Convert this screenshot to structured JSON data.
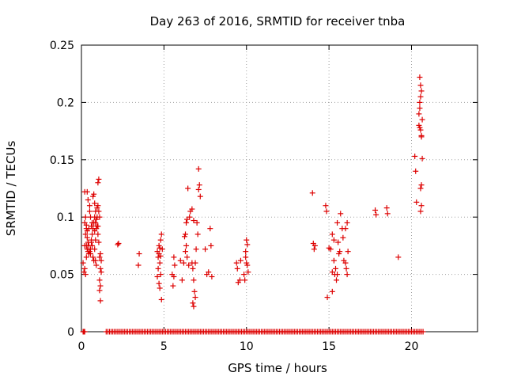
{
  "chart_data": {
    "type": "scatter",
    "title": "Day 263 of 2016, SRMTID for receiver tnba",
    "xlabel": "GPS time / hours",
    "ylabel": "SRMTID / TECUs",
    "xlim": [
      0,
      24
    ],
    "ylim": [
      0,
      0.25
    ],
    "xticks": [
      0,
      5,
      10,
      15,
      20
    ],
    "xtick_labels": [
      "0",
      "5",
      "10",
      "15",
      "20"
    ],
    "yticks": [
      0,
      0.05,
      0.1,
      0.15,
      0.2,
      0.25
    ],
    "ytick_labels": [
      "0",
      "0.05",
      "0.1",
      "0.15",
      "0.2",
      "0.25"
    ],
    "grid": true,
    "marker": "plus",
    "color": "#dd0000",
    "series": [
      {
        "name": "SRMTID",
        "points": [
          [
            0.1,
            0.0
          ],
          [
            0.15,
            0.0
          ],
          [
            0.2,
            0.0
          ],
          [
            0.1,
            0.06
          ],
          [
            0.15,
            0.052
          ],
          [
            0.2,
            0.055
          ],
          [
            0.25,
            0.05
          ],
          [
            0.3,
            0.065
          ],
          [
            0.2,
            0.075
          ],
          [
            0.25,
            0.085
          ],
          [
            0.3,
            0.093
          ],
          [
            0.35,
            0.088
          ],
          [
            0.2,
            0.095
          ],
          [
            0.25,
            0.1
          ],
          [
            0.3,
            0.09
          ],
          [
            0.35,
            0.082
          ],
          [
            0.4,
            0.078
          ],
          [
            0.45,
            0.09
          ],
          [
            0.5,
            0.11
          ],
          [
            0.2,
            0.122
          ],
          [
            0.35,
            0.122
          ],
          [
            0.4,
            0.115
          ],
          [
            0.5,
            0.105
          ],
          [
            0.55,
            0.1
          ],
          [
            0.6,
            0.092
          ],
          [
            0.45,
            0.075
          ],
          [
            0.5,
            0.07
          ],
          [
            0.55,
            0.068
          ],
          [
            0.6,
            0.08
          ],
          [
            0.65,
            0.085
          ],
          [
            0.7,
            0.09
          ],
          [
            0.75,
            0.095
          ],
          [
            0.8,
            0.1
          ],
          [
            0.65,
            0.075
          ],
          [
            0.7,
            0.065
          ],
          [
            0.75,
            0.062
          ],
          [
            0.8,
            0.072
          ],
          [
            0.85,
            0.08
          ],
          [
            0.9,
            0.09
          ],
          [
            0.95,
            0.1
          ],
          [
            1.0,
            0.11
          ],
          [
            0.7,
            0.118
          ],
          [
            0.75,
            0.12
          ],
          [
            0.8,
            0.112
          ],
          [
            0.85,
            0.105
          ],
          [
            0.9,
            0.098
          ],
          [
            0.95,
            0.092
          ],
          [
            1.0,
            0.085
          ],
          [
            1.05,
            0.078
          ],
          [
            1.1,
            0.1
          ],
          [
            1.05,
            0.105
          ],
          [
            1.0,
            0.13
          ],
          [
            1.05,
            0.133
          ],
          [
            0.6,
            0.078
          ],
          [
            0.55,
            0.072
          ],
          [
            0.4,
            0.07
          ],
          [
            0.45,
            0.068
          ],
          [
            0.3,
            0.075
          ],
          [
            0.35,
            0.072
          ],
          [
            0.85,
            0.062
          ],
          [
            0.9,
            0.058
          ],
          [
            1.1,
            0.065
          ],
          [
            1.15,
            0.068
          ],
          [
            1.2,
            0.062
          ],
          [
            1.15,
            0.055
          ],
          [
            1.2,
            0.052
          ],
          [
            1.1,
            0.045
          ],
          [
            1.15,
            0.04
          ],
          [
            1.1,
            0.036
          ],
          [
            1.15,
            0.027
          ],
          [
            1.0,
            0.092
          ],
          [
            0.95,
            0.108
          ],
          [
            0.85,
            0.095
          ],
          [
            0.8,
            0.088
          ],
          [
            0.65,
            0.095
          ],
          [
            2.2,
            0.076
          ],
          [
            2.25,
            0.077
          ],
          [
            3.5,
            0.068
          ],
          [
            3.45,
            0.058
          ],
          [
            4.6,
            0.07
          ],
          [
            4.65,
            0.065
          ],
          [
            4.7,
            0.075
          ],
          [
            4.75,
            0.06
          ],
          [
            4.8,
            0.08
          ],
          [
            4.85,
            0.085
          ],
          [
            4.6,
            0.048
          ],
          [
            4.65,
            0.055
          ],
          [
            4.7,
            0.042
          ],
          [
            4.75,
            0.038
          ],
          [
            4.8,
            0.05
          ],
          [
            4.9,
            0.072
          ],
          [
            4.85,
            0.028
          ],
          [
            4.7,
            0.068
          ],
          [
            4.8,
            0.066
          ],
          [
            4.75,
            0.073
          ],
          [
            5.5,
            0.05
          ],
          [
            5.6,
            0.048
          ],
          [
            5.65,
            0.058
          ],
          [
            5.55,
            0.04
          ],
          [
            5.6,
            0.065
          ],
          [
            6.0,
            0.062
          ],
          [
            6.1,
            0.045
          ],
          [
            6.2,
            0.06
          ],
          [
            6.25,
            0.083
          ],
          [
            6.3,
            0.085
          ],
          [
            6.35,
            0.095
          ],
          [
            6.4,
            0.098
          ],
          [
            6.45,
            0.125
          ],
          [
            6.3,
            0.07
          ],
          [
            6.35,
            0.075
          ],
          [
            6.4,
            0.065
          ],
          [
            6.5,
            0.058
          ],
          [
            6.55,
            0.1
          ],
          [
            6.6,
            0.105
          ],
          [
            6.7,
            0.06
          ],
          [
            6.75,
            0.055
          ],
          [
            6.8,
            0.045
          ],
          [
            6.85,
            0.035
          ],
          [
            6.9,
            0.03
          ],
          [
            6.75,
            0.025
          ],
          [
            6.8,
            0.022
          ],
          [
            6.9,
            0.06
          ],
          [
            6.95,
            0.072
          ],
          [
            6.8,
            0.097
          ],
          [
            7.0,
            0.095
          ],
          [
            7.05,
            0.085
          ],
          [
            6.7,
            0.107
          ],
          [
            7.1,
            0.142
          ],
          [
            7.15,
            0.128
          ],
          [
            7.1,
            0.124
          ],
          [
            7.2,
            0.118
          ],
          [
            7.5,
            0.072
          ],
          [
            7.6,
            0.05
          ],
          [
            7.7,
            0.052
          ],
          [
            7.8,
            0.09
          ],
          [
            7.85,
            0.075
          ],
          [
            7.9,
            0.048
          ],
          [
            9.4,
            0.06
          ],
          [
            9.45,
            0.055
          ],
          [
            9.5,
            0.043
          ],
          [
            9.6,
            0.045
          ],
          [
            9.65,
            0.062
          ],
          [
            9.85,
            0.05
          ],
          [
            9.9,
            0.045
          ],
          [
            9.95,
            0.07
          ],
          [
            10.0,
            0.08
          ],
          [
            10.05,
            0.076
          ],
          [
            10.0,
            0.06
          ],
          [
            9.95,
            0.065
          ],
          [
            10.05,
            0.058
          ],
          [
            10.1,
            0.052
          ],
          [
            14.0,
            0.121
          ],
          [
            14.05,
            0.077
          ],
          [
            14.1,
            0.072
          ],
          [
            14.15,
            0.075
          ],
          [
            14.8,
            0.11
          ],
          [
            14.85,
            0.105
          ],
          [
            14.9,
            0.03
          ],
          [
            15.0,
            0.073
          ],
          [
            15.1,
            0.072
          ],
          [
            15.2,
            0.035
          ],
          [
            15.3,
            0.062
          ],
          [
            15.2,
            0.085
          ],
          [
            15.3,
            0.08
          ],
          [
            15.4,
            0.055
          ],
          [
            15.5,
            0.05
          ],
          [
            15.45,
            0.045
          ],
          [
            15.6,
            0.068
          ],
          [
            15.55,
            0.078
          ],
          [
            15.65,
            0.07
          ],
          [
            15.7,
            0.103
          ],
          [
            15.8,
            0.09
          ],
          [
            15.85,
            0.082
          ],
          [
            15.9,
            0.062
          ],
          [
            16.0,
            0.06
          ],
          [
            16.05,
            0.055
          ],
          [
            16.1,
            0.05
          ],
          [
            16.15,
            0.07
          ],
          [
            16.1,
            0.095
          ],
          [
            15.2,
            0.052
          ],
          [
            15.35,
            0.05
          ],
          [
            15.5,
            0.095
          ],
          [
            16.0,
            0.09
          ],
          [
            17.8,
            0.106
          ],
          [
            17.85,
            0.102
          ],
          [
            18.5,
            0.108
          ],
          [
            18.55,
            0.103
          ],
          [
            19.2,
            0.065
          ],
          [
            20.2,
            0.153
          ],
          [
            20.25,
            0.14
          ],
          [
            20.3,
            0.113
          ],
          [
            20.5,
            0.222
          ],
          [
            20.55,
            0.215
          ],
          [
            20.6,
            0.21
          ],
          [
            20.55,
            0.205
          ],
          [
            20.5,
            0.2
          ],
          [
            20.45,
            0.19
          ],
          [
            20.5,
            0.195
          ],
          [
            20.45,
            0.18
          ],
          [
            20.55,
            0.176
          ],
          [
            20.5,
            0.178
          ],
          [
            20.65,
            0.185
          ],
          [
            20.6,
            0.17
          ],
          [
            20.65,
            0.151
          ],
          [
            20.6,
            0.128
          ],
          [
            20.55,
            0.125
          ],
          [
            20.6,
            0.11
          ],
          [
            20.55,
            0.105
          ],
          [
            20.6,
            0.171
          ]
        ]
      }
    ],
    "zero_points_x": [
      1.5,
      1.6,
      1.7,
      1.8,
      1.9,
      2.0,
      2.1,
      2.2,
      2.3,
      2.4,
      2.5,
      2.6,
      2.7,
      2.8,
      2.9,
      3.0,
      3.1,
      3.2,
      3.3,
      3.4,
      3.5,
      3.6,
      3.7,
      3.8,
      3.9,
      4.0,
      4.1,
      4.2,
      4.3,
      4.4,
      4.5,
      4.6,
      4.7,
      4.8,
      4.9,
      5.0,
      5.1,
      5.2,
      5.3,
      5.4,
      5.5,
      5.6,
      5.7,
      5.8,
      5.9,
      6.0,
      6.1,
      6.2,
      6.3,
      6.4,
      6.5,
      6.6,
      6.7,
      6.8,
      6.9,
      7.0,
      7.1,
      7.2,
      7.3,
      7.4,
      7.5,
      7.6,
      7.7,
      7.8,
      7.9,
      8.0,
      8.1,
      8.2,
      8.3,
      8.4,
      8.5,
      8.6,
      8.7,
      8.8,
      8.9,
      9.0,
      9.1,
      9.2,
      9.3,
      9.4,
      9.5,
      9.6,
      9.7,
      9.8,
      9.9,
      10.0,
      10.1,
      10.2,
      10.3,
      10.4,
      10.5,
      10.6,
      10.7,
      10.8,
      10.9,
      11.0,
      11.1,
      11.2,
      11.3,
      11.4,
      11.5,
      11.6,
      11.7,
      11.8,
      11.9,
      12.0,
      12.1,
      12.2,
      12.3,
      12.4,
      12.5,
      12.6,
      12.7,
      12.8,
      12.9,
      13.0,
      13.1,
      13.2,
      13.3,
      13.4,
      13.5,
      13.6,
      13.7,
      13.8,
      13.9,
      14.0,
      14.1,
      14.2,
      14.3,
      14.4,
      14.5,
      14.6,
      14.7,
      14.8,
      14.9,
      15.0,
      15.1,
      15.2,
      15.3,
      15.4,
      15.5,
      15.6,
      15.7,
      15.8,
      15.9,
      16.0,
      16.1,
      16.2,
      16.3,
      16.4,
      16.5,
      16.6,
      16.7,
      16.8,
      16.9,
      17.0,
      17.1,
      17.2,
      17.3,
      17.4,
      17.5,
      17.6,
      17.7,
      17.8,
      17.9,
      18.0,
      18.1,
      18.2,
      18.3,
      18.4,
      18.5,
      18.6,
      18.7,
      18.8,
      18.9,
      19.0,
      19.1,
      19.2,
      19.3,
      19.4,
      19.5,
      19.6,
      19.7,
      19.8,
      19.9,
      20.0,
      20.1,
      20.2,
      20.3,
      20.4,
      20.5,
      20.6,
      20.7
    ]
  }
}
